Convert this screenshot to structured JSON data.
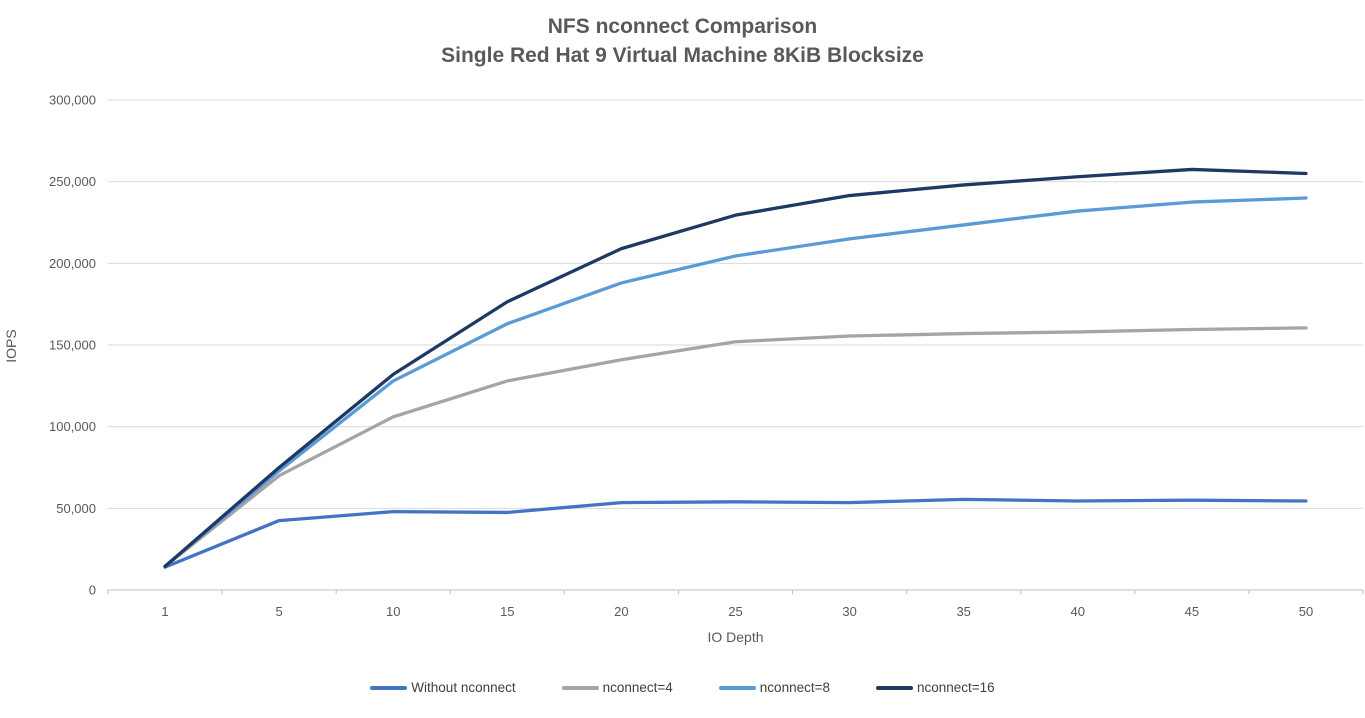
{
  "title": {
    "line1": "NFS nconnect Comparison",
    "line2": "Single Red Hat 9 Virtual Machine 8KiB Blocksize"
  },
  "chart_data": {
    "type": "line",
    "title": "NFS nconnect Comparison Single Red Hat 9 Virtual Machine 8KiB Blocksize",
    "xlabel": "IO Depth",
    "ylabel": "IOPS",
    "x": [
      1,
      5,
      10,
      15,
      20,
      25,
      30,
      35,
      40,
      45,
      50
    ],
    "x_tick_labels": [
      "1",
      "5",
      "10",
      "15",
      "20",
      "25",
      "30",
      "35",
      "40",
      "45",
      "50"
    ],
    "ylim": [
      0,
      300000
    ],
    "y_tick_values": [
      0,
      50000,
      100000,
      150000,
      200000,
      250000,
      300000
    ],
    "y_tick_labels": [
      "0",
      "50,000",
      "100,000",
      "150,000",
      "200,000",
      "250,000",
      "300,000"
    ],
    "grid": "horizontal",
    "legend_position": "bottom",
    "series": [
      {
        "name": "Without nconnect",
        "color": "#4472C4",
        "values": [
          14000,
          42500,
          48000,
          47500,
          53500,
          54000,
          53500,
          55500,
          54500,
          55000,
          54500
        ]
      },
      {
        "name": "nconnect=4",
        "color": "#A5A5A5",
        "values": [
          14500,
          70000,
          106000,
          128000,
          141000,
          152000,
          155500,
          157000,
          158000,
          159500,
          160500
        ]
      },
      {
        "name": "nconnect=8",
        "color": "#5B9BD5",
        "values": [
          14500,
          73000,
          128000,
          163000,
          188000,
          204500,
          215000,
          223500,
          232000,
          237500,
          240000
        ]
      },
      {
        "name": "nconnect=16",
        "color": "#1F3864",
        "values": [
          14500,
          75000,
          132000,
          176500,
          209000,
          229500,
          241500,
          248000,
          253000,
          257500,
          255000
        ]
      }
    ]
  },
  "colors": {
    "gridline": "#D9D9D9",
    "axis_line": "#BFBFBF",
    "tick_text": "#595959"
  }
}
